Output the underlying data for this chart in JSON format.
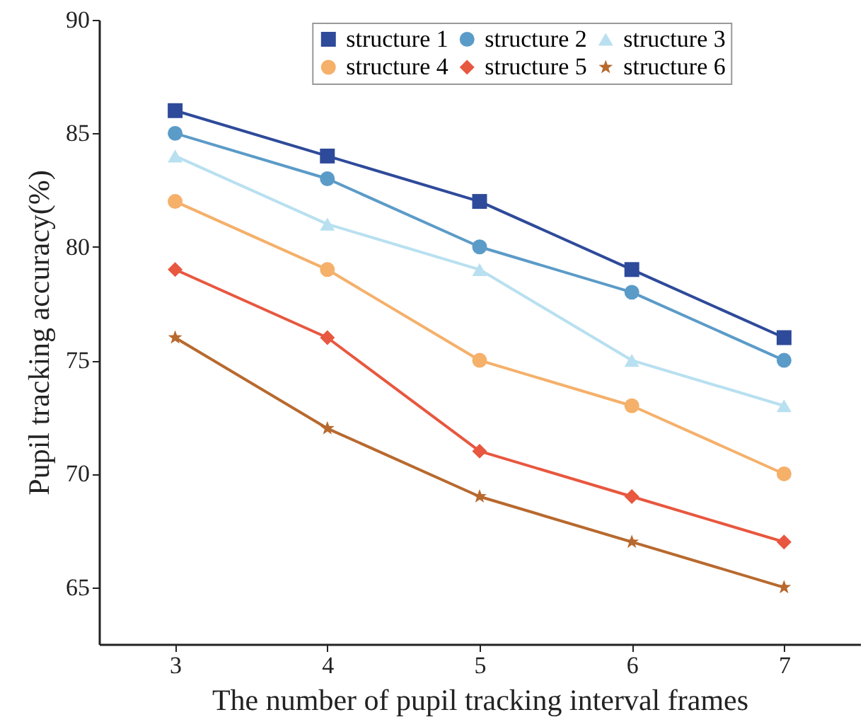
{
  "chart_data": {
    "type": "line",
    "xlabel": "The number of pupil tracking interval frames",
    "ylabel": "Pupil tracking accuracy(%)",
    "x": [
      3,
      4,
      5,
      6,
      7
    ],
    "series": [
      {
        "name": "structure 1",
        "color": "#2e4a9a",
        "marker": "square",
        "values": [
          86,
          84,
          82,
          79,
          76
        ]
      },
      {
        "name": "structure 2",
        "color": "#5b9bc8",
        "marker": "circle",
        "values": [
          85,
          83,
          80,
          78,
          75
        ]
      },
      {
        "name": "structure 3",
        "color": "#b8e0f0",
        "marker": "triangle",
        "values": [
          84,
          81,
          79,
          75,
          73
        ]
      },
      {
        "name": "structure 4",
        "color": "#f5b06a",
        "marker": "circle",
        "values": [
          82,
          79,
          75,
          73,
          70
        ]
      },
      {
        "name": "structure 5",
        "color": "#e8573f",
        "marker": "diamond",
        "values": [
          79,
          76,
          71,
          69,
          67
        ]
      },
      {
        "name": "structure 6",
        "color": "#b8692e",
        "marker": "star",
        "values": [
          76,
          72,
          69,
          67,
          65
        ]
      }
    ],
    "xlim": [
      2.5,
      7.5
    ],
    "xticks": [
      3,
      4,
      5,
      6,
      7
    ],
    "ylim": [
      62.5,
      90
    ],
    "yticks": [
      65,
      70,
      75,
      80,
      85,
      90
    ],
    "grid": false,
    "legend": "top",
    "line_style": "solid"
  }
}
